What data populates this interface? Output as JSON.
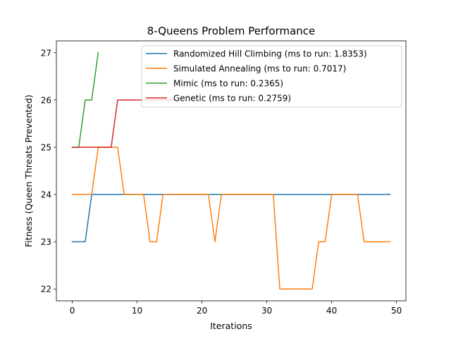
{
  "chart_data": {
    "type": "line",
    "title": "8-Queens Problem Performance",
    "xlabel": "Iterations",
    "ylabel": "Fitness (Queen Threats Prevented)",
    "xlim": [
      -2.45,
      51.45
    ],
    "ylim": [
      21.75,
      27.25
    ],
    "xticks": [
      0,
      10,
      20,
      30,
      40,
      50
    ],
    "xtick_labels": [
      "0",
      "10",
      "20",
      "30",
      "40",
      "50"
    ],
    "yticks": [
      22,
      23,
      24,
      25,
      26,
      27
    ],
    "ytick_labels": [
      "22",
      "23",
      "24",
      "25",
      "26",
      "27"
    ],
    "grid": false,
    "legend_position": "upper-right",
    "series": [
      {
        "name": "Randomized Hill Climbing (ms to run: 1.8353)",
        "color": "#1f77b4",
        "x": [
          0,
          1,
          2,
          3,
          4,
          5,
          6,
          7,
          8,
          9,
          10,
          11,
          12,
          13,
          14,
          15,
          16,
          17,
          18,
          19,
          20,
          21,
          22,
          23,
          24,
          25,
          26,
          27,
          28,
          29,
          30,
          31,
          32,
          33,
          34,
          35,
          36,
          37,
          38,
          39,
          40,
          41,
          42,
          43,
          44,
          45,
          46,
          47,
          48,
          49
        ],
        "y": [
          23,
          23,
          23,
          24,
          24,
          24,
          24,
          24,
          24,
          24,
          24,
          24,
          24,
          24,
          24,
          24,
          24,
          24,
          24,
          24,
          24,
          24,
          24,
          24,
          24,
          24,
          24,
          24,
          24,
          24,
          24,
          24,
          24,
          24,
          24,
          24,
          24,
          24,
          24,
          24,
          24,
          24,
          24,
          24,
          24,
          24,
          24,
          24,
          24,
          24
        ]
      },
      {
        "name": "Simulated Annealing (ms to run: 0.7017)",
        "color": "#ff7f0e",
        "x": [
          0,
          1,
          2,
          3,
          4,
          5,
          6,
          7,
          8,
          9,
          10,
          11,
          12,
          13,
          14,
          15,
          16,
          17,
          18,
          19,
          20,
          21,
          22,
          23,
          24,
          25,
          26,
          27,
          28,
          29,
          30,
          31,
          32,
          33,
          34,
          35,
          36,
          37,
          38,
          39,
          40,
          41,
          42,
          43,
          44,
          45,
          46,
          47,
          48,
          49
        ],
        "y": [
          24,
          24,
          24,
          24,
          25,
          25,
          25,
          25,
          24,
          24,
          24,
          24,
          23,
          23,
          24,
          24,
          24,
          24,
          24,
          24,
          24,
          24,
          23,
          24,
          24,
          24,
          24,
          24,
          24,
          24,
          24,
          24,
          22,
          22,
          22,
          22,
          22,
          22,
          23,
          23,
          24,
          24,
          24,
          24,
          24,
          23,
          23,
          23,
          23,
          23
        ]
      },
      {
        "name": "Mimic (ms to run: 0.2365)",
        "color": "#2ca02c",
        "x": [
          0,
          1,
          2,
          3,
          4
        ],
        "y": [
          25,
          25,
          26,
          26,
          27
        ]
      },
      {
        "name": "Genetic (ms to run: 0.2759)",
        "color": "#d62728",
        "x": [
          0,
          1,
          2,
          3,
          4,
          5,
          6,
          7,
          8,
          9,
          10,
          11,
          12,
          13,
          14,
          15,
          16
        ],
        "y": [
          25,
          25,
          25,
          25,
          25,
          25,
          25,
          26,
          26,
          26,
          26,
          26,
          26,
          26,
          26,
          26,
          26
        ]
      }
    ]
  }
}
